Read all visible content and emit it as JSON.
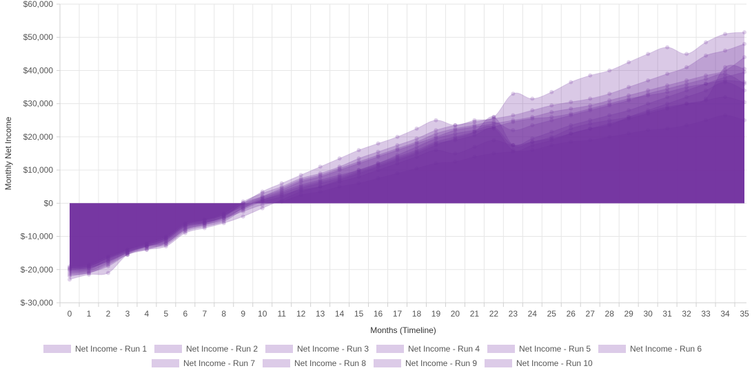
{
  "chart_data": {
    "type": "area",
    "xlabel": "Months (Timeline)",
    "ylabel": "Monthly Net Income",
    "ylim": [
      -30000,
      60000
    ],
    "y_ticks": [
      -30000,
      -20000,
      -10000,
      0,
      10000,
      20000,
      30000,
      40000,
      50000,
      60000
    ],
    "y_tick_labels": [
      "$-30,000",
      "$-20,000",
      "$-10,000",
      "$0",
      "$10,000",
      "$20,000",
      "$30,000",
      "$40,000",
      "$50,000",
      "$60,000"
    ],
    "x": [
      0,
      1,
      2,
      3,
      4,
      5,
      6,
      7,
      8,
      9,
      10,
      11,
      12,
      13,
      14,
      15,
      16,
      17,
      18,
      19,
      20,
      21,
      22,
      23,
      24,
      25,
      26,
      27,
      28,
      29,
      30,
      31,
      32,
      33,
      34,
      35
    ],
    "x_tick_labels": [
      "0",
      "1",
      "2",
      "3",
      "4",
      "5",
      "6",
      "7",
      "8",
      "9",
      "10",
      "11",
      "12",
      "13",
      "14",
      "15",
      "16",
      "17",
      "18",
      "19",
      "20",
      "21",
      "22",
      "23",
      "24",
      "25",
      "26",
      "27",
      "28",
      "29",
      "30",
      "31",
      "32",
      "33",
      "34",
      "35"
    ],
    "grid": true,
    "legend_position": "bottom",
    "fill_color": "#7030a0",
    "legend_swatch_color": "#dccbe8",
    "series": [
      {
        "name": "Net Income - Run 1",
        "values": [
          -20000,
          -19500,
          -17500,
          -14800,
          -13000,
          -11000,
          -7000,
          -5800,
          -4500,
          -2500,
          -500,
          500,
          2500,
          3500,
          5000,
          6000,
          7500,
          9000,
          10500,
          12000,
          12500,
          14000,
          15000,
          15500,
          16000,
          17500,
          18500,
          19000,
          20000,
          21000,
          22000,
          22500,
          23500,
          25000,
          26500,
          25000
        ]
      },
      {
        "name": "Net Income - Run 2",
        "values": [
          -21000,
          -20500,
          -18000,
          -15000,
          -13000,
          -12000,
          -8000,
          -6500,
          -5000,
          -1500,
          1000,
          2500,
          4000,
          5000,
          6500,
          8000,
          10000,
          12000,
          14000,
          16000,
          15000,
          17000,
          19000,
          17500,
          18500,
          20000,
          22500,
          24000,
          25000,
          26000,
          27500,
          29000,
          30000,
          31000,
          32000,
          30500
        ]
      },
      {
        "name": "Net Income - Run 3",
        "values": [
          -19500,
          -19000,
          -16500,
          -14000,
          -12500,
          -10500,
          -6500,
          -5500,
          -3500,
          -1000,
          1500,
          3500,
          5500,
          7000,
          8500,
          10000,
          12000,
          14000,
          16000,
          18500,
          20000,
          21500,
          23000,
          24500,
          25500,
          26000,
          27000,
          28500,
          30000,
          31500,
          32500,
          33500,
          35000,
          36000,
          37000,
          36500
        ]
      },
      {
        "name": "Net Income - Run 4",
        "values": [
          -22000,
          -21000,
          -19000,
          -15500,
          -13500,
          -12500,
          -8500,
          -7000,
          -5500,
          -2000,
          500,
          2000,
          4500,
          6000,
          7500,
          9500,
          11500,
          13500,
          15500,
          18000,
          19000,
          20500,
          22500,
          16000,
          17500,
          19000,
          21000,
          22500,
          24000,
          25500,
          27000,
          28500,
          30000,
          31500,
          41000,
          40500
        ]
      },
      {
        "name": "Net Income - Run 5",
        "values": [
          -20500,
          -20000,
          -17000,
          -14500,
          -13000,
          -11500,
          -7500,
          -6000,
          -4000,
          0,
          2000,
          4000,
          6500,
          8000,
          10000,
          12000,
          14000,
          16000,
          18000,
          20000,
          22000,
          23000,
          24000,
          25000,
          26000,
          27500,
          28500,
          29500,
          31000,
          32500,
          34000,
          35500,
          37000,
          38500,
          40000,
          44000
        ]
      },
      {
        "name": "Net Income - Run 6",
        "values": [
          -19000,
          -18500,
          -16000,
          -14000,
          -12000,
          -10000,
          -6000,
          -5000,
          -3000,
          500,
          3000,
          5000,
          7500,
          9000,
          11000,
          13500,
          15500,
          17500,
          19500,
          22000,
          23500,
          24500,
          25500,
          26500,
          28000,
          29500,
          30500,
          31500,
          33000,
          35000,
          37000,
          39000,
          41000,
          44500,
          46000,
          48000
        ]
      },
      {
        "name": "Net Income - Run 7",
        "values": [
          -21500,
          -21000,
          -18500,
          -15500,
          -14000,
          -12000,
          -8000,
          -6500,
          -4500,
          -1500,
          1000,
          3000,
          5000,
          6500,
          8000,
          10000,
          12000,
          14500,
          17000,
          19500,
          21000,
          22000,
          23000,
          17500,
          19500,
          21500,
          23500,
          25000,
          26500,
          28000,
          30000,
          32000,
          34000,
          36000,
          38000,
          39500
        ]
      },
      {
        "name": "Net Income - Run 8",
        "values": [
          -20000,
          -19500,
          -17500,
          -15000,
          -13000,
          -11000,
          -7000,
          -6000,
          -4000,
          -500,
          2000,
          4500,
          7000,
          8500,
          10500,
          12500,
          14500,
          16500,
          18500,
          21000,
          22500,
          23500,
          24500,
          22000,
          23500,
          25000,
          26500,
          28000,
          29500,
          31000,
          33000,
          34500,
          36000,
          37500,
          39000,
          36000
        ]
      },
      {
        "name": "Net Income - Run 9",
        "values": [
          -23000,
          -21500,
          -21000,
          -15500,
          -14000,
          -13000,
          -9000,
          -7500,
          -6000,
          -4000,
          -1500,
          1000,
          3500,
          5000,
          7000,
          9000,
          11000,
          13000,
          15000,
          17500,
          19500,
          21500,
          26000,
          17500,
          18500,
          19500,
          21000,
          22500,
          23500,
          26000,
          28000,
          30000,
          32000,
          34000,
          36500,
          34000
        ]
      },
      {
        "name": "Net Income - Run 10",
        "values": [
          -19500,
          -19000,
          -16500,
          -14500,
          -12500,
          -10500,
          -6500,
          -5000,
          -3500,
          0,
          3500,
          6000,
          8500,
          11000,
          13500,
          16000,
          18000,
          20000,
          22500,
          25000,
          23500,
          25000,
          26000,
          33000,
          31500,
          33500,
          36500,
          38500,
          40000,
          42500,
          45000,
          47000,
          45000,
          48500,
          51000,
          51500
        ]
      }
    ]
  }
}
